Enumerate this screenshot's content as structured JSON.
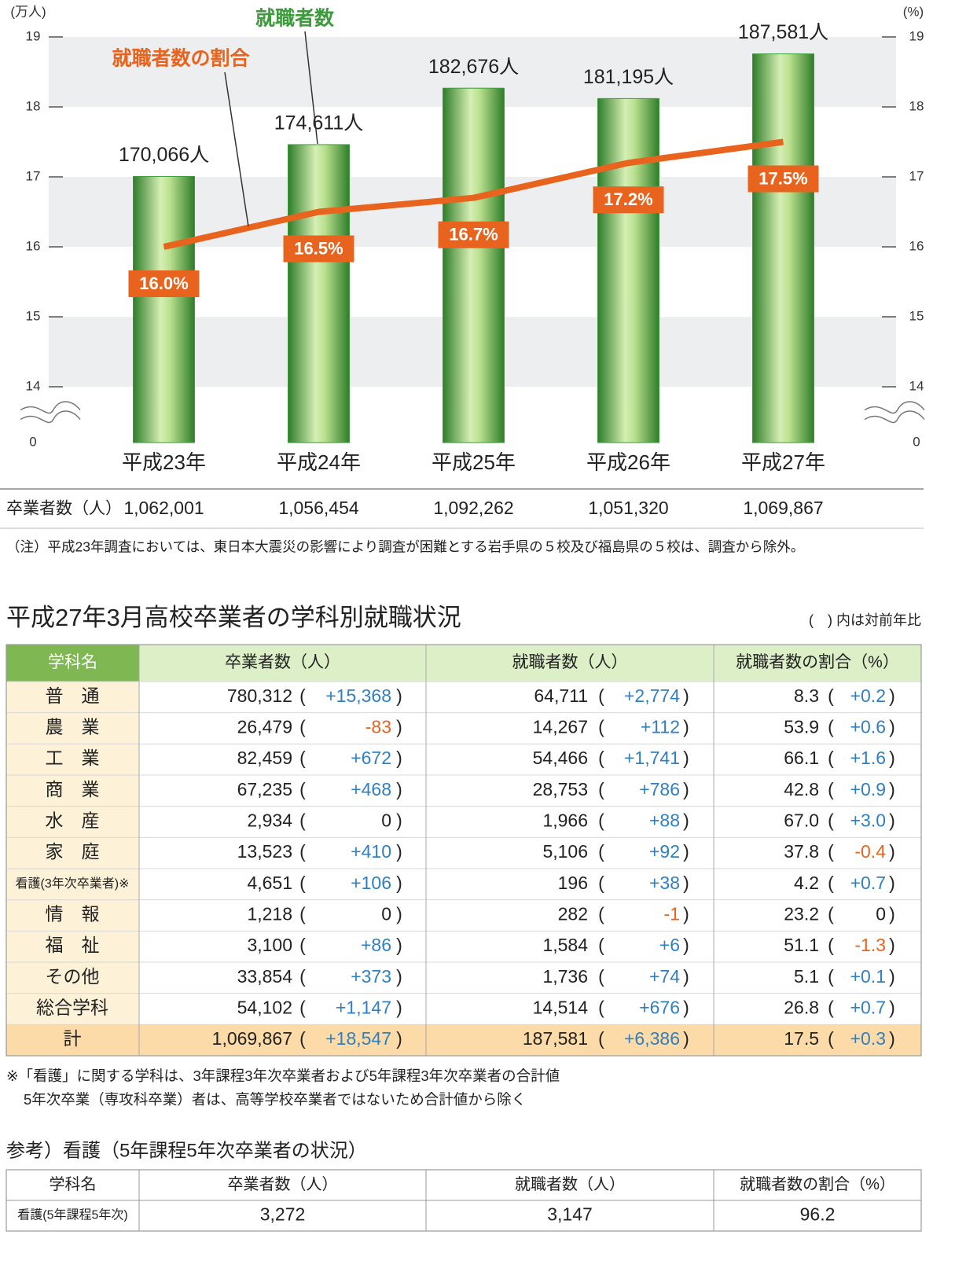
{
  "chart_data": {
    "type": "bar",
    "y_label": "(万人)",
    "y2_label": "(%)",
    "categories": [
      "平成23年",
      "平成24年",
      "平成25年",
      "平成26年",
      "平成27年"
    ],
    "series": [
      {
        "name": "就職者数",
        "color": "#3d9a3d",
        "values": [
          17.0066,
          17.4611,
          18.2676,
          18.1195,
          18.7581
        ],
        "value_labels": [
          "170,066人",
          "174,611人",
          "182,676人",
          "181,195人",
          "187,581人"
        ]
      },
      {
        "name": "就職者数の割合",
        "type": "line",
        "axis": "y2",
        "color": "#e8641e",
        "values": [
          16.0,
          16.5,
          16.7,
          17.2,
          17.5
        ],
        "value_labels": [
          "16.0%",
          "16.5%",
          "16.7%",
          "17.2%",
          "17.5%"
        ]
      }
    ],
    "ylim": [
      0,
      19.2
    ],
    "yticks": [
      0,
      14,
      15,
      16,
      17,
      18,
      19
    ],
    "y2lim": [
      0,
      19.2
    ],
    "y2ticks": [
      0,
      14,
      15,
      16,
      17,
      18,
      19
    ],
    "axis_break": [
      0,
      14
    ]
  },
  "graduates_row": {
    "label": "卒業者数（人）",
    "values": [
      "1,062,001",
      "1,056,454",
      "1,092,262",
      "1,051,320",
      "1,069,867"
    ]
  },
  "chart_note": "（注）平成23年調査においては、東日本大震災の影響により調査が困難とする岩手県の５校及び福島県の５校は、調査から除外。",
  "table": {
    "title": "平成27年3月高校卒業者の学科別就職状況",
    "note": "(　) 内は対前年比",
    "header": [
      "学科名",
      "卒業者数（人）",
      "就職者数（人）",
      "就職者数の割合（%）"
    ],
    "rows": [
      [
        "普　通",
        "780,312",
        "+15,368",
        "64,711",
        "+2,774",
        "8.3",
        "+0.2"
      ],
      [
        "農　業",
        "26,479",
        "-83",
        "14,267",
        "+112",
        "53.9",
        "+0.6"
      ],
      [
        "工　業",
        "82,459",
        "+672",
        "54,466",
        "+1,741",
        "66.1",
        "+1.6"
      ],
      [
        "商　業",
        "67,235",
        "+468",
        "28,753",
        "+786",
        "42.8",
        "+0.9"
      ],
      [
        "水　産",
        "2,934",
        "0",
        "1,966",
        "+88",
        "67.0",
        "+3.0"
      ],
      [
        "家　庭",
        "13,523",
        "+410",
        "5,106",
        "+92",
        "37.8",
        "-0.4"
      ],
      [
        "看護(3年次卒業者)※",
        "4,651",
        "+106",
        "196",
        "+38",
        "4.2",
        "+0.7"
      ],
      [
        "情　報",
        "1,218",
        "0",
        "282",
        "-1",
        "23.2",
        "0"
      ],
      [
        "福　祉",
        "3,100",
        "+86",
        "1,584",
        "+6",
        "51.1",
        "-1.3"
      ],
      [
        "その他",
        "33,854",
        "+373",
        "1,736",
        "+74",
        "5.1",
        "+0.1"
      ],
      [
        "総合学科",
        "54,102",
        "+1,147",
        "14,514",
        "+676",
        "26.8",
        "+0.7"
      ],
      [
        "計",
        "1,069,867",
        "+18,547",
        "187,581",
        "+6,386",
        "17.5",
        "+0.3"
      ]
    ]
  },
  "footnotes": [
    "※「看護」に関する学科は、3年課程3年次卒業者および5年課程3年次卒業者の合計値",
    "5年次卒業（専攻科卒業）者は、高等学校卒業者ではないため合計値から除く"
  ],
  "reference": {
    "title": "参考）看護（5年課程5年次卒業者の状況）",
    "header": [
      "学科名",
      "卒業者数（人）",
      "就職者数（人）",
      "就職者数の割合（%）"
    ],
    "row": [
      "看護(5年課程5年次)",
      "3,272",
      "3,147",
      "96.2"
    ]
  }
}
